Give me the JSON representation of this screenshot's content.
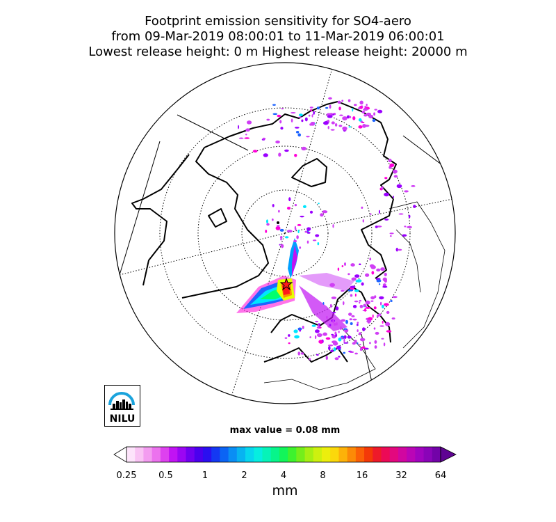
{
  "title": {
    "line1": "Footprint emission sensitivity for SO4-aero",
    "line2": "from 09-Mar-2019 08:00:01 to 11-Mar-2019 06:00:01",
    "line3": "Lowest release height: 0 m       Highest release height: 20000 m"
  },
  "logo": {
    "text": "NILU"
  },
  "max_value": "max value = 0.08 mm",
  "colorbar": {
    "unit": "mm",
    "ticks": [
      "0.25",
      "0.5",
      "1",
      "2",
      "4",
      "8",
      "16",
      "32",
      "64"
    ],
    "colors": [
      "#ffffff",
      "#fde4fb",
      "#f9c3f4",
      "#f39cf0",
      "#ec72ee",
      "#de41ef",
      "#c113f3",
      "#9b06f3",
      "#7000f0",
      "#4a00ee",
      "#2a0ff0",
      "#1438f3",
      "#0b64f4",
      "#0a8ef4",
      "#08b3f1",
      "#07d6ee",
      "#06eee0",
      "#06f3b8",
      "#07f58b",
      "#12f55a",
      "#3ef22e",
      "#74ee1b",
      "#a6ef13",
      "#cdf00f",
      "#ecee0d",
      "#fbd80b",
      "#fdb209",
      "#fc8a07",
      "#fb6006",
      "#f43908",
      "#ee1a2a",
      "#ec0a56",
      "#e3087e",
      "#d106a0",
      "#ba05b6",
      "#a104bf",
      "#8a04b8",
      "#7203a8",
      "#5f0393"
    ]
  },
  "map": {
    "projection": "north-polar-stereographic",
    "plume_colors": [
      "#ff00d8",
      "#d03ef5",
      "#9b00ff",
      "#1e64ff",
      "#00e6ff",
      "#00ff6e",
      "#e6ff00",
      "#ff8c00",
      "#ff1a1a"
    ],
    "release_marker": "star"
  }
}
